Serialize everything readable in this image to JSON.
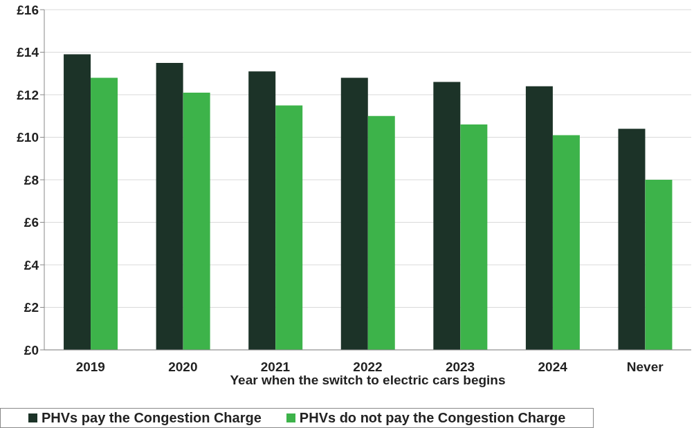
{
  "chart_data": {
    "type": "bar",
    "xlabel": "Year when the switch to electric cars begins",
    "categories": [
      "2019",
      "2020",
      "2021",
      "2022",
      "2023",
      "2024",
      "Never"
    ],
    "series": [
      {
        "name": "PHVs pay the Congestion Charge",
        "color": "#1c3328",
        "values": [
          13.9,
          13.5,
          13.1,
          12.8,
          12.6,
          12.4,
          10.4
        ]
      },
      {
        "name": "PHVs do not pay the Congestion Charge",
        "color": "#3db34a",
        "values": [
          12.8,
          12.1,
          11.5,
          11.0,
          10.6,
          10.1,
          8.0
        ]
      }
    ],
    "ylim": [
      0,
      16
    ],
    "yticks": [
      {
        "value": 0,
        "label": "£0"
      },
      {
        "value": 2,
        "label": "£2"
      },
      {
        "value": 4,
        "label": "£4"
      },
      {
        "value": 6,
        "label": "£6"
      },
      {
        "value": 8,
        "label": "£8"
      },
      {
        "value": 10,
        "label": "£10"
      },
      {
        "value": 12,
        "label": "£12"
      },
      {
        "value": 14,
        "label": "£14"
      },
      {
        "value": 16,
        "label": "£16"
      }
    ],
    "grid": "y",
    "legend": "bottom"
  }
}
